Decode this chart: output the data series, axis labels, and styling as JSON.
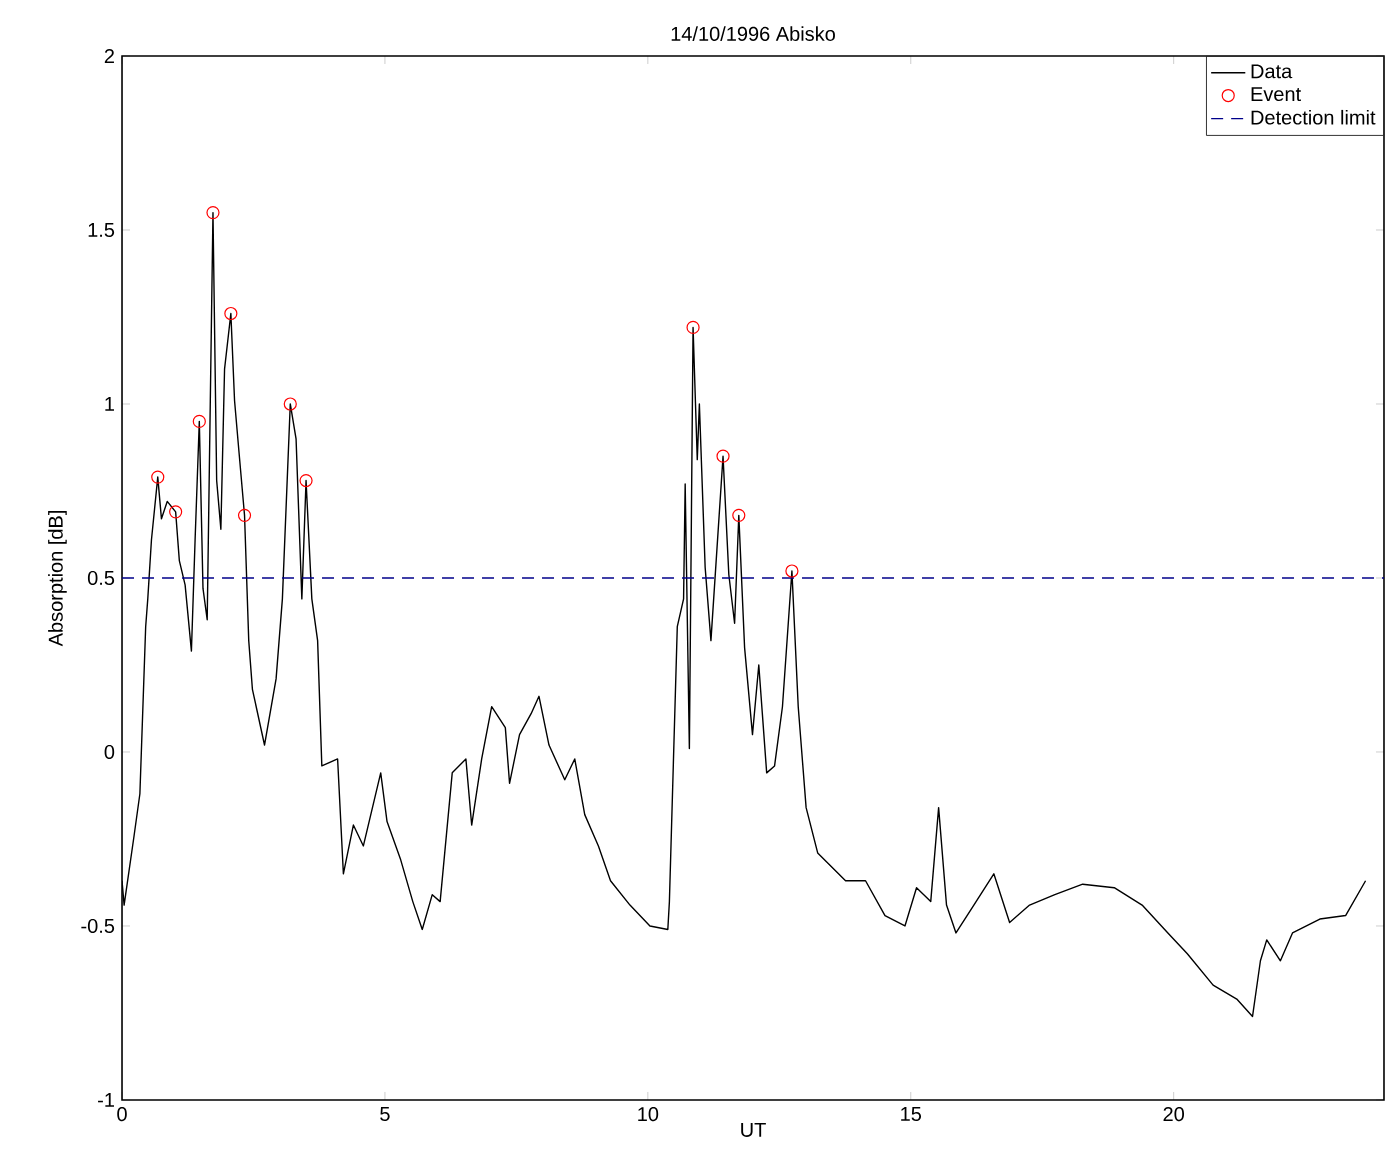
{
  "chart_data": {
    "type": "line",
    "title": "14/10/1996 Abisko",
    "xlabel": "UT",
    "ylabel": "Absorption [dB]",
    "xlim": [
      0,
      24
    ],
    "ylim": [
      -1,
      2
    ],
    "xticks": [
      0,
      5,
      10,
      15,
      20
    ],
    "yticks": [
      -1,
      -0.5,
      0,
      0.5,
      1,
      1.5,
      2
    ],
    "legend": "top right",
    "grid": false,
    "series": [
      {
        "name": "Data",
        "color": "#000000",
        "marker": "none",
        "line_style": "solid",
        "x": [
          0,
          0.04,
          0.23,
          0.34,
          0.45,
          0.49,
          0.56,
          0.68,
          0.75,
          0.86,
          1.02,
          1.09,
          1.2,
          1.32,
          1.39,
          1.47,
          1.54,
          1.62,
          1.73,
          1.8,
          1.88,
          1.95,
          2.07,
          2.14,
          2.22,
          2.33,
          2.41,
          2.48,
          2.71,
          2.93,
          3.05,
          3.2,
          3.31,
          3.42,
          3.5,
          3.61,
          3.72,
          3.8,
          4.1,
          4.21,
          4.4,
          4.59,
          4.92,
          5.04,
          5.3,
          5.53,
          5.71,
          5.9,
          6.05,
          6.28,
          6.54,
          6.65,
          6.84,
          7.03,
          7.29,
          7.37,
          7.56,
          7.78,
          7.93,
          8.12,
          8.42,
          8.61,
          8.8,
          9.06,
          9.29,
          9.66,
          10.04,
          10.38,
          10.41,
          10.56,
          10.68,
          10.71,
          10.79,
          10.86,
          10.94,
          10.98,
          11.09,
          11.2,
          11.43,
          11.54,
          11.65,
          11.73,
          11.84,
          11.99,
          12.11,
          12.26,
          12.41,
          12.56,
          12.74,
          12.86,
          13.01,
          13.23,
          13.76,
          14.14,
          14.51,
          14.89,
          15.11,
          15.38,
          15.53,
          15.68,
          15.86,
          16.2,
          16.58,
          16.88,
          17.26,
          17.74,
          18.27,
          18.87,
          19.4,
          19.89,
          20.26,
          20.75,
          21.2,
          21.5,
          21.65,
          21.77,
          22.03,
          22.26,
          22.78,
          23.27,
          23.65
        ],
        "values": [
          -0.37,
          -0.44,
          -0.24,
          -0.12,
          0.36,
          0.44,
          0.61,
          0.79,
          0.67,
          0.72,
          0.69,
          0.55,
          0.48,
          0.29,
          0.61,
          0.95,
          0.47,
          0.38,
          1.55,
          0.78,
          0.64,
          1.1,
          1.26,
          1.01,
          0.87,
          0.68,
          0.32,
          0.18,
          0.02,
          0.21,
          0.44,
          1.0,
          0.9,
          0.44,
          0.78,
          0.44,
          0.32,
          -0.04,
          -0.02,
          -0.35,
          -0.21,
          -0.27,
          -0.06,
          -0.2,
          -0.31,
          -0.43,
          -0.51,
          -0.41,
          -0.43,
          -0.06,
          -0.02,
          -0.21,
          -0.02,
          0.13,
          0.07,
          -0.09,
          0.05,
          0.11,
          0.16,
          0.02,
          -0.08,
          -0.02,
          -0.18,
          -0.27,
          -0.37,
          -0.44,
          -0.5,
          -0.51,
          -0.43,
          0.36,
          0.44,
          0.77,
          0.01,
          1.22,
          0.84,
          1.0,
          0.53,
          0.32,
          0.85,
          0.51,
          0.37,
          0.68,
          0.3,
          0.05,
          0.25,
          -0.06,
          -0.04,
          0.13,
          0.52,
          0.13,
          -0.16,
          -0.29,
          -0.37,
          -0.37,
          -0.47,
          -0.5,
          -0.39,
          -0.43,
          -0.16,
          -0.44,
          -0.52,
          -0.44,
          -0.35,
          -0.49,
          -0.44,
          -0.41,
          -0.38,
          -0.39,
          -0.44,
          -0.52,
          -0.58,
          -0.67,
          -0.71,
          -0.76,
          -0.6,
          -0.54,
          -0.6,
          -0.52,
          -0.48,
          -0.47,
          -0.37
        ]
      },
      {
        "name": "Event",
        "type": "scatter",
        "color": "#ff0000",
        "marker": "circle",
        "x": [
          0.68,
          1.02,
          1.47,
          1.73,
          2.07,
          2.33,
          3.2,
          3.5,
          10.86,
          11.43,
          11.73,
          12.74
        ],
        "values": [
          0.79,
          0.69,
          0.95,
          1.55,
          1.26,
          0.68,
          1.0,
          0.78,
          1.22,
          0.85,
          0.68,
          0.52
        ]
      }
    ],
    "ref_lines": [
      {
        "axis": "y",
        "value": 0.5,
        "label": "Detection limit",
        "color": "#00008b",
        "line_style": "dashed"
      }
    ]
  }
}
